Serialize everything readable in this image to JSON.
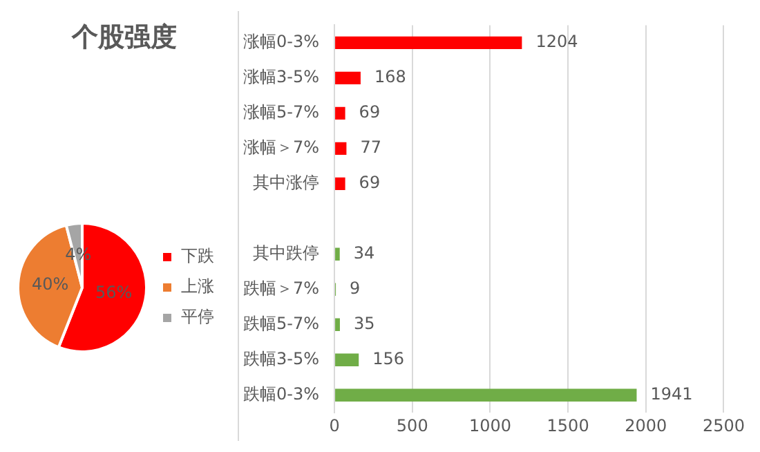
{
  "chart_data": [
    {
      "type": "pie",
      "title": "个股强度",
      "categories": [
        "下跌",
        "上涨",
        "平停"
      ],
      "values": [
        56,
        40,
        4
      ],
      "colors": [
        "#ff0000",
        "#ed7d31",
        "#a5a5a5"
      ],
      "value_labels": [
        "56%",
        "40%",
        "4%"
      ],
      "legend": "right"
    },
    {
      "type": "bar",
      "orientation": "horizontal",
      "categories": [
        "涨幅0-3%",
        "涨幅3-5%",
        "涨幅5-7%",
        "涨幅＞7%",
        "其中涨停",
        null,
        "其中跌停",
        "跌幅＞7%",
        "跌幅5-7%",
        "跌幅3-5%",
        "跌幅0-3%"
      ],
      "values": [
        1204,
        168,
        69,
        77,
        69,
        null,
        34,
        9,
        35,
        156,
        1941
      ],
      "colors": [
        "#ff0000",
        "#ff0000",
        "#ff0000",
        "#ff0000",
        "#ff0000",
        "#ff0000",
        "#70ad47",
        "#70ad47",
        "#70ad47",
        "#70ad47",
        "#70ad47"
      ],
      "xlim": [
        0,
        2500
      ],
      "xticks": [
        0,
        500,
        1000,
        1500,
        2000,
        2500
      ],
      "grid": "x",
      "data_labels": true,
      "legend": false
    }
  ]
}
